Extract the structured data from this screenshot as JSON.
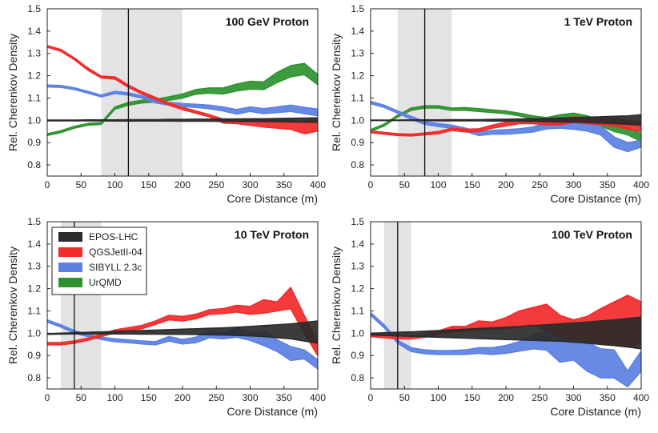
{
  "chart_data": [
    {
      "type": "area",
      "title": "100 GeV Proton",
      "xlabel": "Core Distance (m)",
      "ylabel": "Rel. Cherenkov Density",
      "xlim": [
        0,
        400
      ],
      "ylim": [
        0.75,
        1.5
      ],
      "xticks": [
        0,
        50,
        100,
        150,
        200,
        250,
        300,
        350,
        400
      ],
      "yticks": [
        0.8,
        0.9,
        1.0,
        1.1,
        1.2,
        1.3,
        1.4,
        1.5
      ],
      "shaded_range": [
        80,
        200
      ],
      "vline": 120,
      "x": [
        0,
        20,
        40,
        60,
        80,
        100,
        120,
        140,
        160,
        180,
        200,
        220,
        240,
        260,
        280,
        300,
        320,
        340,
        360,
        380,
        400
      ],
      "series": [
        {
          "name": "EPOS-LHC",
          "color": "#2b2b2b",
          "lo": [
            0.998,
            0.998,
            0.998,
            0.998,
            0.998,
            0.997,
            0.997,
            0.997,
            0.997,
            0.997,
            0.996,
            0.996,
            0.996,
            0.995,
            0.995,
            0.995,
            0.994,
            0.994,
            0.993,
            0.992,
            0.991
          ],
          "hi": [
            1.001,
            1.001,
            1.001,
            1.002,
            1.002,
            1.002,
            1.003,
            1.003,
            1.003,
            1.004,
            1.004,
            1.005,
            1.005,
            1.006,
            1.006,
            1.007,
            1.007,
            1.008,
            1.009,
            1.01,
            1.011
          ]
        },
        {
          "name": "QGSJetII-04",
          "color": "#f22a2a",
          "lo": [
            1.328,
            1.31,
            1.272,
            1.225,
            1.19,
            1.185,
            1.148,
            1.118,
            1.093,
            1.068,
            1.048,
            1.032,
            1.015,
            0.988,
            0.985,
            0.978,
            0.97,
            0.965,
            0.96,
            0.94,
            0.952
          ],
          "hi": [
            1.335,
            1.318,
            1.28,
            1.235,
            1.198,
            1.195,
            1.158,
            1.128,
            1.103,
            1.078,
            1.058,
            1.042,
            1.025,
            1.005,
            1.005,
            1.005,
            1.005,
            1.005,
            1.0,
            0.995,
            1.0
          ]
        },
        {
          "name": "SIBYLL 2.3c",
          "color": "#5b80e3",
          "lo": [
            1.15,
            1.148,
            1.138,
            1.122,
            1.105,
            1.12,
            1.113,
            1.1,
            1.078,
            1.068,
            1.062,
            1.058,
            1.052,
            1.042,
            1.028,
            1.04,
            1.03,
            1.035,
            1.04,
            1.03,
            1.02
          ],
          "hi": [
            1.158,
            1.156,
            1.146,
            1.13,
            1.113,
            1.13,
            1.123,
            1.11,
            1.09,
            1.08,
            1.075,
            1.072,
            1.068,
            1.06,
            1.048,
            1.06,
            1.052,
            1.06,
            1.068,
            1.058,
            1.05
          ]
        },
        {
          "name": "UrQMD",
          "color": "#2f922f",
          "lo": [
            0.932,
            0.945,
            0.965,
            0.978,
            0.982,
            1.05,
            1.068,
            1.078,
            1.082,
            1.09,
            1.1,
            1.118,
            1.122,
            1.118,
            1.132,
            1.14,
            1.138,
            1.17,
            1.195,
            1.205,
            1.16
          ],
          "hi": [
            0.94,
            0.953,
            0.973,
            0.986,
            0.99,
            1.06,
            1.08,
            1.09,
            1.095,
            1.105,
            1.118,
            1.138,
            1.145,
            1.145,
            1.162,
            1.175,
            1.172,
            1.215,
            1.245,
            1.255,
            1.205
          ]
        }
      ]
    },
    {
      "type": "area",
      "title": "1 TeV Proton",
      "xlabel": "Core Distance (m)",
      "ylabel": "Rel. Cherenkov Density",
      "xlim": [
        0,
        400
      ],
      "ylim": [
        0.75,
        1.5
      ],
      "xticks": [
        0,
        50,
        100,
        150,
        200,
        250,
        300,
        350,
        400
      ],
      "yticks": [
        0.8,
        0.9,
        1.0,
        1.1,
        1.2,
        1.3,
        1.4,
        1.5
      ],
      "shaded_range": [
        40,
        120
      ],
      "vline": 80,
      "x": [
        0,
        20,
        40,
        60,
        80,
        100,
        120,
        140,
        160,
        180,
        200,
        220,
        240,
        260,
        280,
        300,
        320,
        340,
        360,
        380,
        400
      ],
      "series": [
        {
          "name": "EPOS-LHC",
          "color": "#2b2b2b",
          "lo": [
            0.999,
            0.999,
            0.999,
            0.999,
            0.999,
            0.998,
            0.998,
            0.998,
            0.998,
            0.997,
            0.997,
            0.996,
            0.995,
            0.994,
            0.993,
            0.992,
            0.99,
            0.988,
            0.985,
            0.982,
            0.978
          ],
          "hi": [
            1.001,
            1.001,
            1.001,
            1.002,
            1.002,
            1.002,
            1.003,
            1.003,
            1.003,
            1.004,
            1.005,
            1.006,
            1.007,
            1.008,
            1.01,
            1.012,
            1.014,
            1.016,
            1.018,
            1.02,
            1.025
          ]
        },
        {
          "name": "QGSJetII-04",
          "color": "#f22a2a",
          "lo": [
            0.945,
            0.938,
            0.932,
            0.93,
            0.935,
            0.94,
            0.955,
            0.948,
            0.95,
            0.965,
            0.975,
            0.985,
            0.985,
            0.98,
            0.98,
            0.99,
            0.985,
            0.98,
            0.975,
            0.96,
            0.95
          ],
          "hi": [
            0.953,
            0.946,
            0.94,
            0.938,
            0.943,
            0.95,
            0.965,
            0.96,
            0.962,
            0.978,
            0.992,
            1.0,
            1.0,
            1.0,
            1.005,
            1.015,
            1.012,
            1.01,
            1.008,
            1.0,
            0.995
          ]
        },
        {
          "name": "SIBYLL 2.3c",
          "color": "#5b80e3",
          "lo": [
            1.075,
            1.058,
            1.032,
            1.005,
            0.982,
            0.972,
            0.965,
            0.95,
            0.932,
            0.938,
            0.938,
            0.942,
            0.948,
            0.962,
            0.965,
            0.96,
            0.952,
            0.935,
            0.88,
            0.86,
            0.88
          ],
          "hi": [
            1.085,
            1.068,
            1.042,
            1.018,
            0.995,
            0.985,
            0.978,
            0.965,
            0.948,
            0.955,
            0.958,
            0.962,
            0.97,
            0.99,
            0.995,
            0.992,
            0.988,
            0.975,
            0.925,
            0.9,
            0.91
          ]
        },
        {
          "name": "UrQMD",
          "color": "#2f922f",
          "lo": [
            0.95,
            0.975,
            1.015,
            1.045,
            1.055,
            1.055,
            1.045,
            1.045,
            1.04,
            1.035,
            1.03,
            1.02,
            1.005,
            0.995,
            1.005,
            1.01,
            0.995,
            0.975,
            0.95,
            0.935,
            0.905
          ],
          "hi": [
            0.958,
            0.983,
            1.023,
            1.055,
            1.065,
            1.065,
            1.055,
            1.057,
            1.052,
            1.047,
            1.042,
            1.032,
            1.02,
            1.012,
            1.025,
            1.032,
            1.02,
            1.002,
            0.982,
            0.968,
            0.94
          ]
        }
      ]
    },
    {
      "type": "area",
      "title": "10 TeV Proton",
      "xlabel": "Core Distance (m)",
      "ylabel": "Rel. Cherenkov Density",
      "xlim": [
        0,
        400
      ],
      "ylim": [
        0.75,
        1.5
      ],
      "xticks": [
        0,
        50,
        100,
        150,
        200,
        250,
        300,
        350,
        400
      ],
      "yticks": [
        0.8,
        0.9,
        1.0,
        1.1,
        1.2,
        1.3,
        1.4,
        1.5
      ],
      "shaded_range": [
        20,
        80
      ],
      "vline": 40,
      "legend": {
        "position": "top-left",
        "entries": [
          "EPOS-LHC",
          "QGSJetII-04",
          "SIBYLL 2.3c",
          "UrQMD"
        ]
      },
      "x": [
        0,
        20,
        40,
        60,
        80,
        100,
        120,
        140,
        160,
        180,
        200,
        220,
        240,
        260,
        280,
        300,
        320,
        340,
        360,
        380,
        400
      ],
      "series": [
        {
          "name": "EPOS-LHC",
          "color": "#2b2b2b",
          "lo": [
            0.995,
            0.996,
            0.997,
            0.997,
            0.997,
            0.997,
            0.997,
            0.996,
            0.996,
            0.995,
            0.995,
            0.994,
            0.993,
            0.992,
            0.99,
            0.988,
            0.985,
            0.98,
            0.975,
            0.965,
            0.955
          ],
          "hi": [
            0.998,
            1.0,
            1.002,
            1.004,
            1.006,
            1.008,
            1.01,
            1.012,
            1.014,
            1.016,
            1.018,
            1.02,
            1.022,
            1.024,
            1.027,
            1.03,
            1.034,
            1.038,
            1.042,
            1.048,
            1.055
          ]
        },
        {
          "name": "QGSJetII-04",
          "color": "#f22a2a",
          "lo": [
            0.948,
            0.948,
            0.955,
            0.968,
            0.985,
            1.002,
            1.012,
            1.02,
            1.04,
            1.06,
            1.055,
            1.065,
            1.085,
            1.088,
            1.095,
            1.085,
            1.09,
            1.1,
            1.11,
            1.0,
            0.9
          ],
          "hi": [
            0.958,
            0.958,
            0.965,
            0.978,
            0.995,
            1.015,
            1.025,
            1.035,
            1.055,
            1.08,
            1.075,
            1.085,
            1.105,
            1.11,
            1.125,
            1.12,
            1.15,
            1.14,
            1.205,
            1.08,
            0.96
          ]
        },
        {
          "name": "SIBYLL 2.3c",
          "color": "#5b80e3",
          "lo": [
            1.05,
            1.028,
            1.0,
            0.985,
            0.972,
            0.962,
            0.958,
            0.952,
            0.948,
            0.965,
            0.952,
            0.958,
            0.98,
            0.975,
            0.982,
            0.968,
            0.945,
            0.918,
            0.878,
            0.885,
            0.84
          ],
          "hi": [
            1.06,
            1.038,
            1.012,
            0.995,
            0.982,
            0.975,
            0.97,
            0.965,
            0.962,
            0.985,
            0.972,
            0.982,
            1.008,
            1.0,
            1.025,
            1.0,
            1.01,
            0.97,
            0.94,
            0.925,
            0.88
          ]
        }
      ]
    },
    {
      "type": "area",
      "title": "100 TeV Proton",
      "xlabel": "Core Distance (m)",
      "ylabel": "Rel. Cherenkov Density",
      "xlim": [
        0,
        400
      ],
      "ylim": [
        0.75,
        1.5
      ],
      "xticks": [
        0,
        50,
        100,
        150,
        200,
        250,
        300,
        350,
        400
      ],
      "yticks": [
        0.8,
        0.9,
        1.0,
        1.1,
        1.2,
        1.3,
        1.4,
        1.5
      ],
      "shaded_range": [
        20,
        60
      ],
      "vline": 40,
      "x": [
        0,
        20,
        40,
        60,
        80,
        100,
        120,
        140,
        160,
        180,
        200,
        220,
        240,
        260,
        280,
        300,
        320,
        340,
        360,
        380,
        400
      ],
      "series": [
        {
          "name": "EPOS-LHC",
          "color": "#2b2b2b",
          "lo": [
            0.992,
            0.99,
            0.988,
            0.986,
            0.984,
            0.982,
            0.98,
            0.978,
            0.976,
            0.974,
            0.972,
            0.97,
            0.968,
            0.966,
            0.964,
            0.96,
            0.955,
            0.95,
            0.945,
            0.938,
            0.93
          ],
          "hi": [
            1.0,
            1.002,
            1.004,
            1.006,
            1.009,
            1.012,
            1.015,
            1.018,
            1.021,
            1.024,
            1.027,
            1.03,
            1.034,
            1.038,
            1.042,
            1.046,
            1.05,
            1.055,
            1.06,
            1.066,
            1.072
          ]
        },
        {
          "name": "QGSJetII-04",
          "color": "#f22a2a",
          "lo": [
            0.985,
            0.98,
            0.975,
            0.975,
            0.982,
            0.995,
            1.005,
            1.01,
            1.015,
            1.02,
            1.02,
            1.03,
            1.04,
            1.01,
            0.98,
            0.97,
            0.96,
            0.95,
            0.945,
            0.94,
            0.95
          ],
          "hi": [
            0.998,
            0.992,
            0.985,
            0.985,
            0.995,
            1.01,
            1.03,
            1.03,
            1.055,
            1.05,
            1.07,
            1.1,
            1.115,
            1.13,
            1.08,
            1.06,
            1.075,
            1.11,
            1.14,
            1.17,
            1.14
          ]
        },
        {
          "name": "SIBYLL 2.3c",
          "color": "#5b80e3",
          "lo": [
            1.08,
            1.025,
            0.955,
            0.918,
            0.908,
            0.905,
            0.905,
            0.905,
            0.91,
            0.905,
            0.91,
            0.92,
            0.93,
            0.925,
            0.87,
            0.88,
            0.83,
            0.8,
            0.8,
            0.76,
            0.83
          ],
          "hi": [
            1.092,
            1.038,
            0.968,
            0.935,
            0.925,
            0.922,
            0.922,
            0.925,
            0.935,
            0.935,
            0.945,
            0.962,
            0.99,
            1.01,
            0.97,
            0.98,
            0.96,
            0.93,
            0.925,
            0.83,
            0.92
          ]
        }
      ]
    }
  ]
}
